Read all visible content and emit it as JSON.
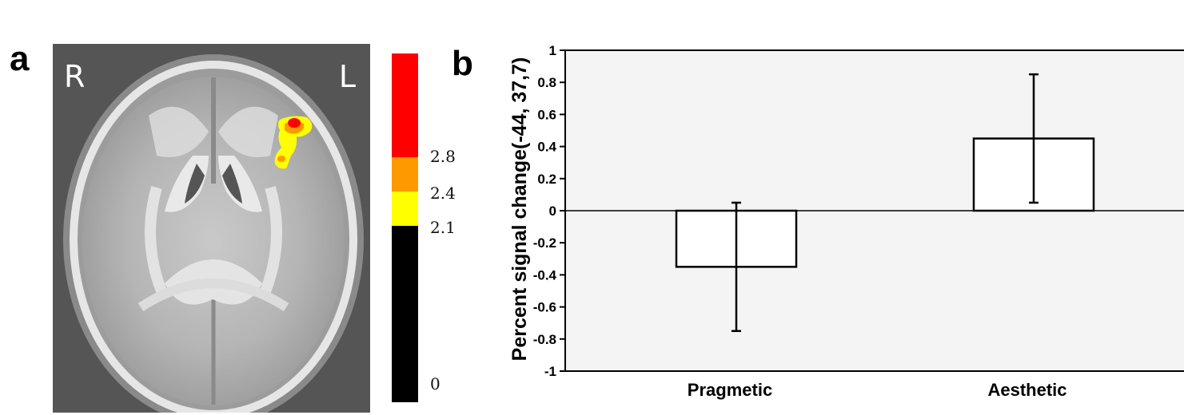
{
  "panels": {
    "a_label": "a",
    "b_label": "b"
  },
  "brain": {
    "orientation_right": "R",
    "orientation_left": "L",
    "activation_colors": [
      "#ff0000",
      "#ff9900",
      "#ffff00"
    ]
  },
  "colorbar": {
    "segments": [
      {
        "color": "#ff0000",
        "from": 2.8,
        "to": 3.5
      },
      {
        "color": "#ff9900",
        "from": 2.4,
        "to": 2.8
      },
      {
        "color": "#ffff00",
        "from": 2.1,
        "to": 2.4
      },
      {
        "color": "#000000",
        "from": 0,
        "to": 2.1
      }
    ],
    "tick_labels": [
      "2.8",
      "2.4",
      "2.1",
      "0"
    ]
  },
  "chart_data": {
    "type": "bar",
    "categories": [
      "Pragmetic",
      "Aesthetic"
    ],
    "values": [
      -0.35,
      0.45
    ],
    "error_bars": [
      {
        "low": -0.75,
        "high": 0.05
      },
      {
        "low": 0.05,
        "high": 0.85
      }
    ],
    "ylabel": "Percent signal change(-44, 37,7)",
    "xlabel": "",
    "ylim": [
      -1,
      1
    ],
    "yticks": [
      "1",
      "0.8",
      "0.6",
      "0.4",
      "0.2",
      "0",
      "-0.2",
      "-0.4",
      "-0.6",
      "-0.8",
      "-1"
    ],
    "grid": false,
    "plot_background": "#f4f4f4",
    "bar_fill": "#ffffff"
  }
}
